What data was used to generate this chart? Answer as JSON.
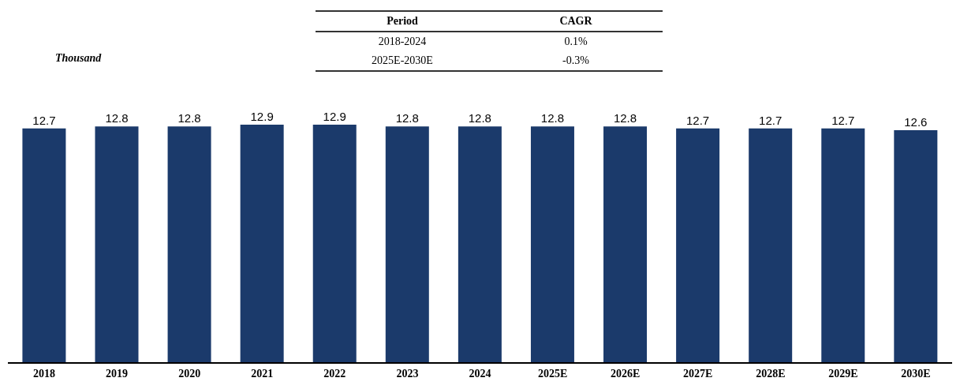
{
  "chart_data": {
    "type": "bar",
    "categories": [
      "2018",
      "2019",
      "2020",
      "2021",
      "2022",
      "2023",
      "2024",
      "2025E",
      "2026E",
      "2027E",
      "2028E",
      "2029E",
      "2030E"
    ],
    "values": [
      12.7,
      12.8,
      12.8,
      12.9,
      12.9,
      12.8,
      12.8,
      12.8,
      12.8,
      12.7,
      12.7,
      12.7,
      12.6
    ],
    "color": "#1b3a6b",
    "data_labels": true,
    "annotations": [
      "Thousand",
      "Period",
      "CAGR",
      "2018-2024",
      "0.1%",
      "2025E-2030E",
      "-0.3%"
    ]
  }
}
